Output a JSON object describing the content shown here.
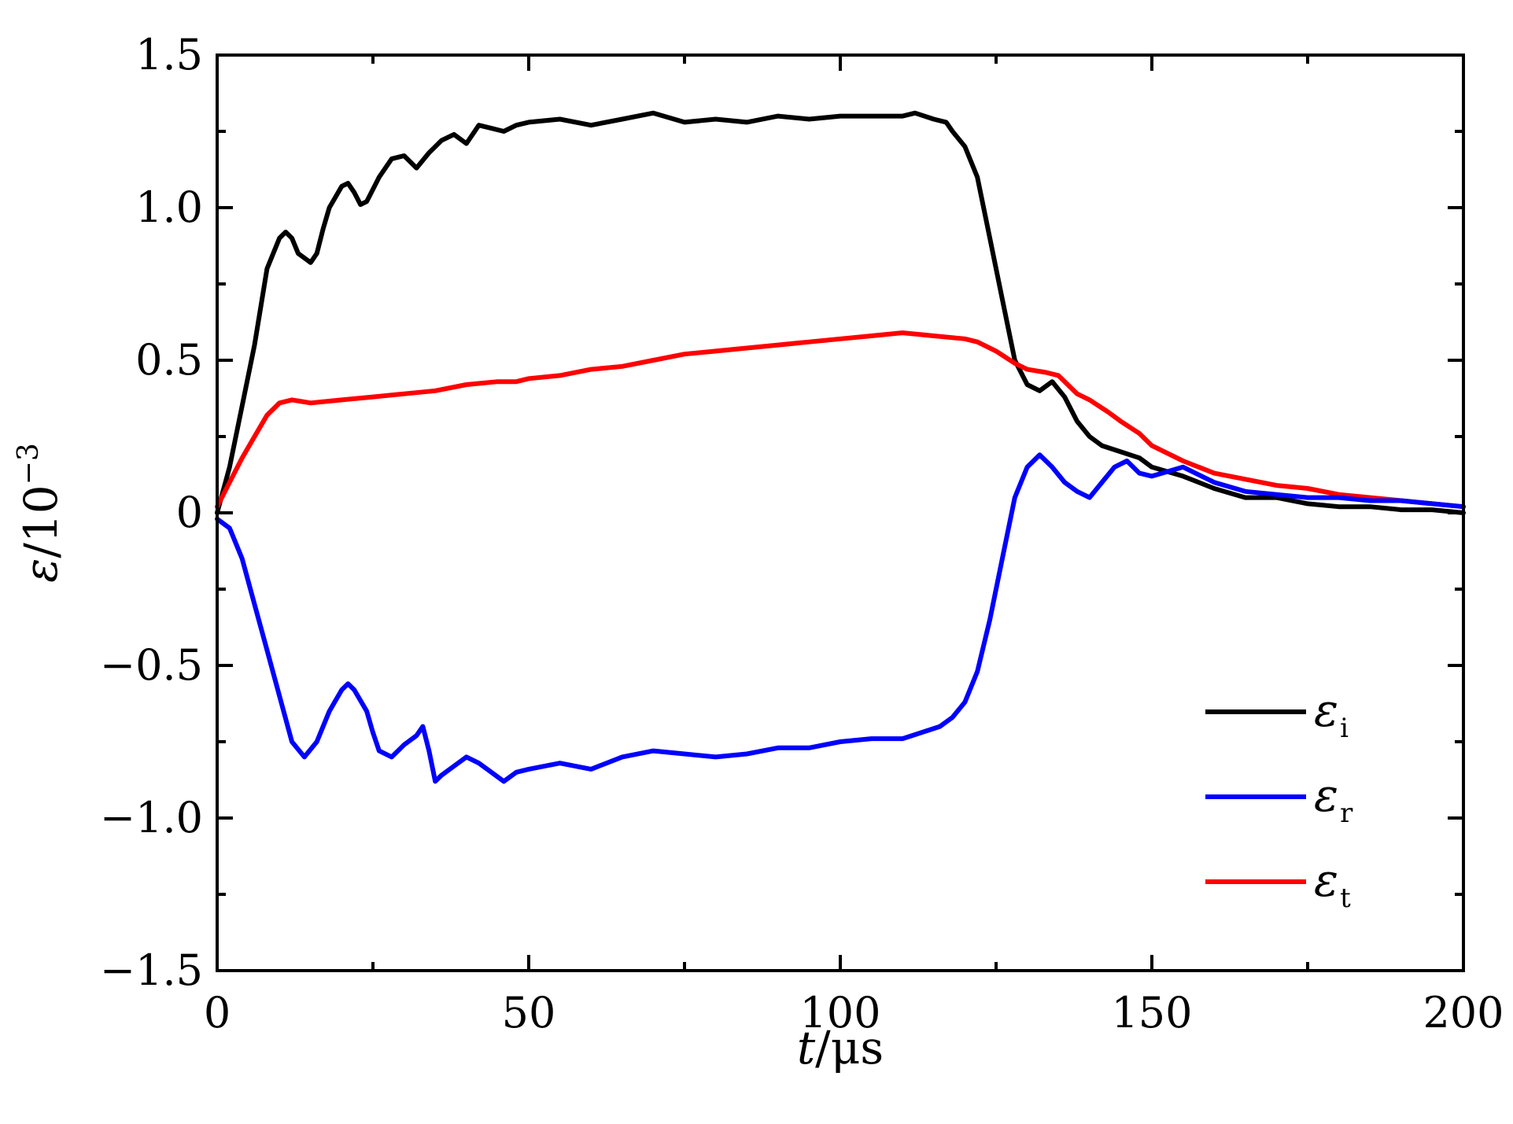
{
  "chart_data": {
    "type": "line",
    "xlabel": "t/μs",
    "xlabel_var": "t",
    "xlabel_unit": "/μs",
    "ylabel": "ε/10⁻³",
    "ylabel_var": "ε",
    "ylabel_unit": "/10",
    "ylabel_exp": "−3",
    "xlim": [
      0,
      200
    ],
    "ylim": [
      -1.5,
      1.5
    ],
    "xticks": [
      0,
      50,
      100,
      150,
      200
    ],
    "xtick_labels": [
      "0",
      "50",
      "100",
      "150",
      "200"
    ],
    "yticks": [
      -1.5,
      -1.0,
      -0.5,
      0,
      0.5,
      1.0,
      1.5
    ],
    "ytick_labels": [
      "−1.5",
      "−1.0",
      "−0.5",
      "0",
      "0.5",
      "1.0",
      "1.5"
    ],
    "grid": false,
    "legend_position": "bottom-right",
    "series": [
      {
        "name": "εi",
        "symbol": "ε",
        "subscript": "i",
        "color": "#000000",
        "x": [
          0,
          2,
          4,
          6,
          8,
          10,
          11,
          12,
          13,
          15,
          16,
          17,
          18,
          20,
          21,
          22,
          23,
          24,
          26,
          28,
          30,
          32,
          34,
          36,
          38,
          40,
          42,
          44,
          46,
          48,
          50,
          55,
          60,
          65,
          70,
          75,
          80,
          85,
          90,
          95,
          100,
          105,
          110,
          112,
          115,
          117,
          118,
          120,
          122,
          124,
          126,
          128,
          130,
          132,
          134,
          136,
          138,
          140,
          142,
          145,
          148,
          150,
          155,
          160,
          165,
          170,
          175,
          180,
          185,
          190,
          195,
          200
        ],
        "y": [
          0.0,
          0.15,
          0.35,
          0.55,
          0.8,
          0.9,
          0.92,
          0.9,
          0.85,
          0.82,
          0.85,
          0.93,
          1.0,
          1.07,
          1.08,
          1.05,
          1.01,
          1.02,
          1.1,
          1.16,
          1.17,
          1.13,
          1.18,
          1.22,
          1.24,
          1.21,
          1.27,
          1.26,
          1.25,
          1.27,
          1.28,
          1.29,
          1.27,
          1.29,
          1.31,
          1.28,
          1.29,
          1.28,
          1.3,
          1.29,
          1.3,
          1.3,
          1.3,
          1.31,
          1.29,
          1.28,
          1.25,
          1.2,
          1.1,
          0.9,
          0.7,
          0.5,
          0.42,
          0.4,
          0.43,
          0.38,
          0.3,
          0.25,
          0.22,
          0.2,
          0.18,
          0.15,
          0.12,
          0.08,
          0.05,
          0.05,
          0.03,
          0.02,
          0.02,
          0.01,
          0.01,
          0.0
        ]
      },
      {
        "name": "εr",
        "symbol": "ε",
        "subscript": "r",
        "color": "#0000ff",
        "x": [
          0,
          2,
          4,
          6,
          8,
          10,
          12,
          14,
          16,
          18,
          20,
          21,
          22,
          24,
          25,
          26,
          28,
          30,
          32,
          33,
          34,
          35,
          36,
          38,
          40,
          42,
          44,
          46,
          48,
          50,
          55,
          60,
          65,
          70,
          75,
          80,
          85,
          90,
          95,
          100,
          105,
          110,
          113,
          116,
          118,
          120,
          122,
          124,
          126,
          128,
          130,
          132,
          134,
          136,
          138,
          140,
          142,
          144,
          146,
          148,
          150,
          155,
          160,
          165,
          170,
          175,
          180,
          185,
          190,
          195,
          200
        ],
        "y": [
          -0.02,
          -0.05,
          -0.15,
          -0.3,
          -0.45,
          -0.6,
          -0.75,
          -0.8,
          -0.75,
          -0.65,
          -0.58,
          -0.56,
          -0.58,
          -0.65,
          -0.72,
          -0.78,
          -0.8,
          -0.76,
          -0.73,
          -0.7,
          -0.78,
          -0.88,
          -0.86,
          -0.83,
          -0.8,
          -0.82,
          -0.85,
          -0.88,
          -0.85,
          -0.84,
          -0.82,
          -0.84,
          -0.8,
          -0.78,
          -0.79,
          -0.8,
          -0.79,
          -0.77,
          -0.77,
          -0.75,
          -0.74,
          -0.74,
          -0.72,
          -0.7,
          -0.67,
          -0.62,
          -0.52,
          -0.35,
          -0.15,
          0.05,
          0.15,
          0.19,
          0.15,
          0.1,
          0.07,
          0.05,
          0.1,
          0.15,
          0.17,
          0.13,
          0.12,
          0.15,
          0.1,
          0.07,
          0.06,
          0.05,
          0.05,
          0.04,
          0.04,
          0.03,
          0.02
        ]
      },
      {
        "name": "εt",
        "symbol": "ε",
        "subscript": "t",
        "color": "#ff0000",
        "x": [
          0,
          2,
          4,
          6,
          8,
          10,
          12,
          15,
          20,
          25,
          30,
          35,
          40,
          45,
          48,
          50,
          55,
          60,
          65,
          70,
          75,
          80,
          85,
          90,
          95,
          100,
          105,
          110,
          115,
          120,
          122,
          125,
          128,
          130,
          133,
          135,
          138,
          140,
          143,
          145,
          148,
          150,
          155,
          160,
          165,
          170,
          175,
          180,
          185,
          190,
          195,
          200
        ],
        "y": [
          0.02,
          0.1,
          0.18,
          0.25,
          0.32,
          0.36,
          0.37,
          0.36,
          0.37,
          0.38,
          0.39,
          0.4,
          0.42,
          0.43,
          0.43,
          0.44,
          0.45,
          0.47,
          0.48,
          0.5,
          0.52,
          0.53,
          0.54,
          0.55,
          0.56,
          0.57,
          0.58,
          0.59,
          0.58,
          0.57,
          0.56,
          0.53,
          0.49,
          0.47,
          0.46,
          0.45,
          0.39,
          0.37,
          0.33,
          0.3,
          0.26,
          0.22,
          0.17,
          0.13,
          0.11,
          0.09,
          0.08,
          0.06,
          0.05,
          0.04,
          0.03,
          0.02
        ]
      }
    ]
  }
}
